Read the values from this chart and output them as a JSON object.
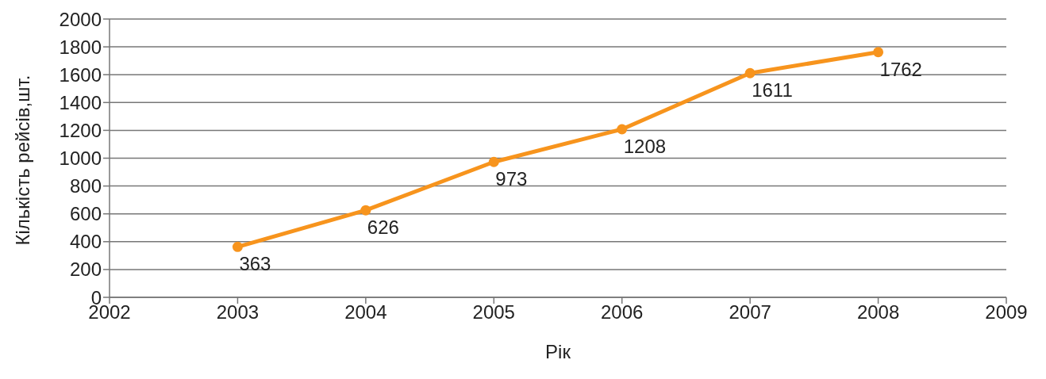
{
  "chart_data": {
    "type": "line",
    "xlabel": "Рік",
    "ylabel": "Кількість рейсів,шт.",
    "x": [
      2003,
      2004,
      2005,
      2006,
      2007,
      2008
    ],
    "values": [
      363,
      626,
      973,
      1208,
      1611,
      1762
    ],
    "color": "#f7941d",
    "xlim": [
      2002,
      2009
    ],
    "xticks": [
      2002,
      2003,
      2004,
      2005,
      2006,
      2007,
      2008,
      2009
    ],
    "ylim": [
      0,
      2000
    ],
    "yticks": [
      0,
      200,
      400,
      600,
      800,
      1000,
      1200,
      1400,
      1600,
      1800,
      2000
    ],
    "grid": "y",
    "marker": "circle",
    "line_style": "solid",
    "data_labels": true
  }
}
